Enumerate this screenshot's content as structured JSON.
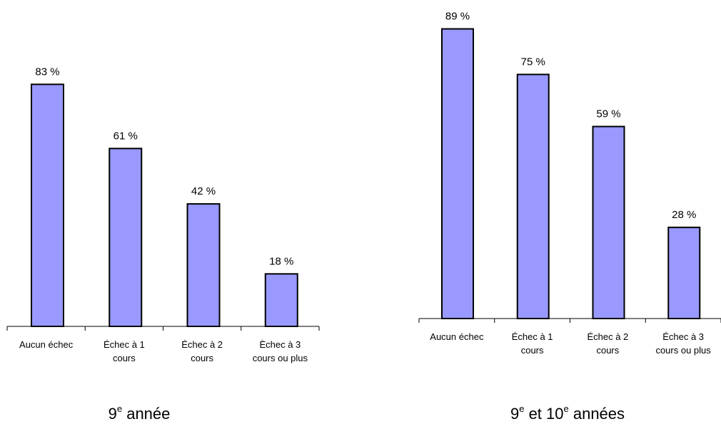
{
  "colors": {
    "bar_fill": "#9999ff",
    "bar_stroke": "#000000",
    "axis": "#000000"
  },
  "chart_data": [
    {
      "type": "bar",
      "categories": [
        [
          "Aucun échec"
        ],
        [
          "Échec à 1",
          "cours"
        ],
        [
          "Échec à 2",
          "cours"
        ],
        [
          "Èchec à 3",
          "cours ou plus"
        ]
      ],
      "values": [
        83,
        61,
        42,
        18
      ],
      "value_labels": [
        "83 %",
        "61 %",
        "42 %",
        "18 %"
      ],
      "caption": {
        "prefix": "9",
        "sup1": "e",
        "middle": " année",
        "sup2": "",
        "suffix": ""
      },
      "grid": false,
      "legend": "none"
    },
    {
      "type": "bar",
      "categories": [
        [
          "Aucun échec"
        ],
        [
          "Échec à 1",
          "cours"
        ],
        [
          "Échec à 2",
          "cours"
        ],
        [
          "Échec à 3",
          "cours ou plus"
        ]
      ],
      "values": [
        89,
        75,
        59,
        28
      ],
      "value_labels": [
        "89 %",
        "75 %",
        "59 %",
        "28 %"
      ],
      "caption": {
        "prefix": "9",
        "sup1": "e",
        "middle": " et 10",
        "sup2": "e",
        "suffix": " années"
      },
      "grid": false,
      "legend": "none"
    }
  ]
}
